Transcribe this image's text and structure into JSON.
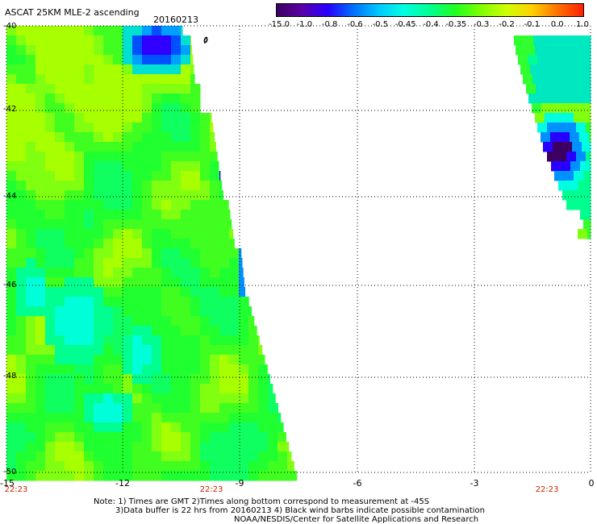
{
  "header": {
    "title": "ASCAT 25KM MLE-2 ascending",
    "date": "20160213"
  },
  "colorbar": {
    "labels": [
      "-15.0",
      "-1.0",
      "-0.8",
      "-0.6",
      "-0.5",
      "-0.45",
      "-0.4",
      "-0.35",
      "-0.3",
      "-0.2",
      "-0.1",
      "0.0",
      "1.0"
    ],
    "colors": [
      "#3c0060",
      "#5a00a8",
      "#2800ff",
      "#0070ff",
      "#00c8ff",
      "#00ffe0",
      "#00ff90",
      "#20ff20",
      "#80ff00",
      "#d0ff00",
      "#ffd000",
      "#ff7000",
      "#ff2000"
    ]
  },
  "axes": {
    "y_ticks": [
      "-40",
      "-42",
      "-44",
      "-46",
      "-48",
      "-50"
    ],
    "x_ticks": [
      "-15",
      "-12",
      "-9",
      "-6",
      "-3",
      "0"
    ],
    "times": [
      "22:23",
      "22:23",
      "22:23"
    ]
  },
  "map_data": {
    "lon_range": [
      -15,
      0
    ],
    "lat_range": [
      -50,
      -40
    ],
    "swaths": [
      {
        "name": "west",
        "description": "mostly -0.35 to -0.3 green with -0.4 cyan patches, dark blue -0.8 near -11.5,-40.5"
      },
      {
        "name": "east",
        "description": "narrow band near -2 to -0.3 with dark purple core near -1,-43"
      }
    ]
  },
  "notes": {
    "line1": "Note: 1) Times are GMT 2)Times along bottom correspond to measurement at -45S",
    "line2": "3)Data buffer is 22 hrs from 20160213 4) Black wind barbs indicate possible contamination",
    "line3": "NOAA/NESDIS/Center for Satellite Applications and Research"
  }
}
